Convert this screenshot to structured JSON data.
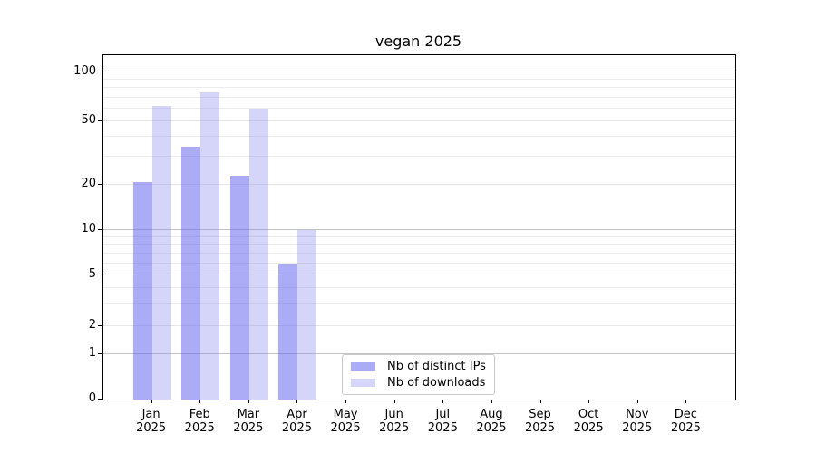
{
  "chart_data": {
    "type": "bar",
    "title": "vegan 2025",
    "categories": [
      "Jan 2025",
      "Feb 2025",
      "Mar 2025",
      "Apr 2025",
      "May 2025",
      "Jun 2025",
      "Jul 2025",
      "Aug 2025",
      "Sep 2025",
      "Oct 2025",
      "Nov 2025",
      "Dec 2025"
    ],
    "series": [
      {
        "name": "Nb of distinct IPs",
        "fill": "rgba(102,102,238,0.55)",
        "color_on_white": "#ababf6",
        "values": [
          21,
          35,
          23,
          6,
          null,
          null,
          null,
          null,
          null,
          null,
          null,
          null
        ]
      },
      {
        "name": "Nb of downloads",
        "fill": "rgba(136,136,238,0.35)",
        "color_on_white": "#d5d5f9",
        "values": [
          62,
          76,
          60,
          10,
          null,
          null,
          null,
          null,
          null,
          null,
          null,
          null
        ]
      }
    ],
    "yscale": "log above 1, linear from 0 to 1",
    "yticks": [
      0,
      1,
      2,
      5,
      10,
      20,
      50,
      100
    ],
    "minor_gridlines": [
      3,
      4,
      6,
      7,
      8,
      9,
      30,
      40,
      60,
      70,
      80,
      90
    ],
    "decade_gridlines": [
      1,
      10,
      100
    ],
    "ylim": [
      0,
      130
    ],
    "xlabel": "",
    "ylabel": "",
    "grid": "horizontal",
    "legend_position": "lower center",
    "colors": {
      "axis": "#000000",
      "grid_minor": "#ececec",
      "grid_decade": "#c2c2c2",
      "legend_border": "#c9c9c9",
      "background": "#ffffff"
    }
  }
}
